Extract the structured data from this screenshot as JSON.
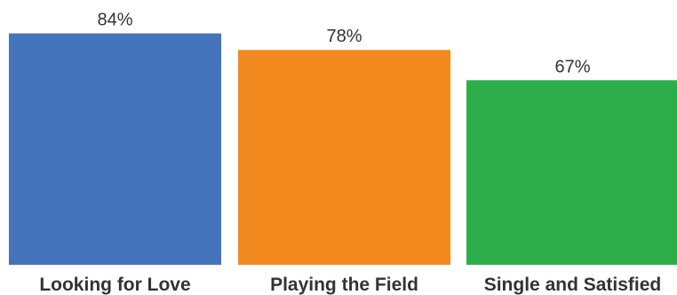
{
  "chart_data": {
    "type": "bar",
    "categories": [
      "Looking for Love",
      "Playing the Field",
      "Single and Satisfied"
    ],
    "values": [
      84,
      78,
      67
    ],
    "value_labels": [
      "84%",
      "78%",
      "67%"
    ],
    "colors": [
      "#4573BC",
      "#F28A20",
      "#2EAD4B"
    ],
    "ylim": [
      0,
      100
    ],
    "grid": false,
    "legend": "none"
  }
}
